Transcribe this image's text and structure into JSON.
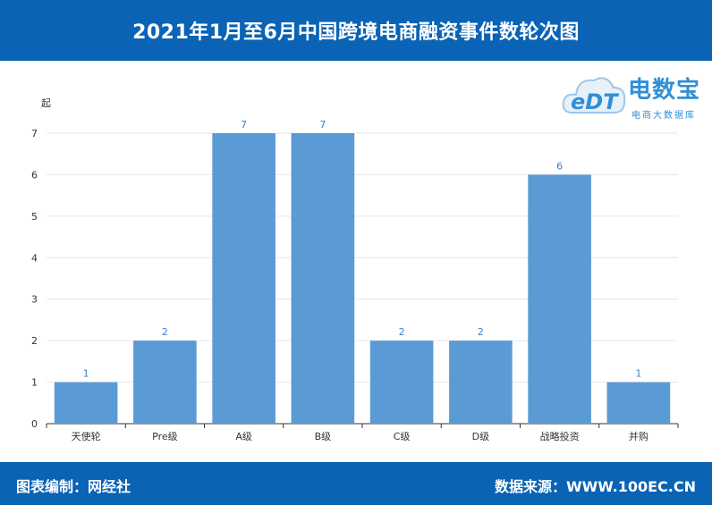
{
  "header": {
    "title": "2021年1月至6月中国跨境电商融资事件数轮次图"
  },
  "footer": {
    "left": "图表编制：网经社",
    "right": "数据来源：WWW.100EC.CN"
  },
  "logo": {
    "name": "电数宝",
    "subtitle": "电商大数据库",
    "mark": "eDT"
  },
  "colors": {
    "header_bg": "#0a63b5",
    "bar": "#5b9bd5",
    "label": "#3a7fc4"
  },
  "chart_data": {
    "type": "bar",
    "title": "2021年1月至6月中国跨境电商融资事件数轮次图",
    "ylabel": "起",
    "xlabel": "",
    "categories": [
      "天使轮",
      "Pre级",
      "A级",
      "B级",
      "C级",
      "D级",
      "战略投资",
      "并购"
    ],
    "values": [
      1,
      2,
      7,
      7,
      2,
      2,
      6,
      1
    ],
    "ylim": [
      0,
      7
    ],
    "yticks": [
      0,
      1,
      2,
      3,
      4,
      5,
      6,
      7
    ],
    "grid": true,
    "legend": "none"
  }
}
